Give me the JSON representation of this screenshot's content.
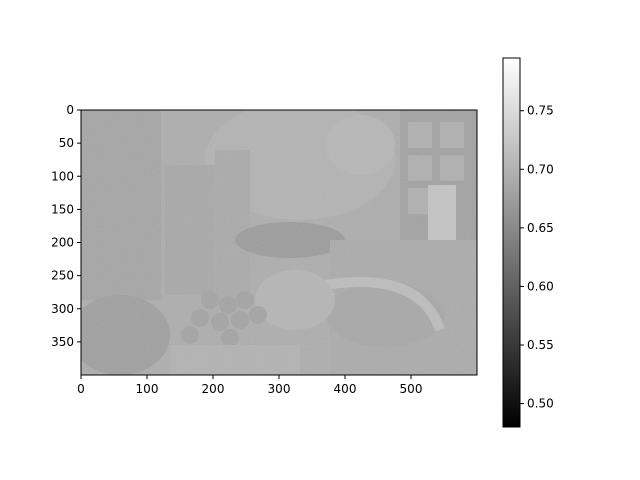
{
  "chart_data": {
    "type": "heatmap",
    "title": "",
    "xlabel": "",
    "ylabel": "",
    "image": {
      "width": 600,
      "height": 400,
      "content": "grayscale photograph-like image: white cat behind a table with glass bottles, grapes, a bowl and a plate; checkered window at top right",
      "base_value": 0.68
    },
    "x_axis": {
      "range": [
        0,
        600
      ],
      "ticks": [
        0,
        100,
        200,
        300,
        400,
        500
      ]
    },
    "y_axis": {
      "range": [
        0,
        400
      ],
      "inverted": true,
      "ticks": [
        0,
        50,
        100,
        150,
        200,
        250,
        300,
        350
      ]
    },
    "colorbar": {
      "colormap": "gray",
      "range": [
        0.48,
        0.795
      ],
      "ticks": [
        0.5,
        0.55,
        0.6,
        0.65,
        0.7,
        0.75
      ],
      "tick_labels": [
        "0.50",
        "0.55",
        "0.60",
        "0.65",
        "0.70",
        "0.75"
      ]
    },
    "grid": false,
    "colors": {
      "axis": "#000000",
      "background": "#ffffff"
    }
  }
}
